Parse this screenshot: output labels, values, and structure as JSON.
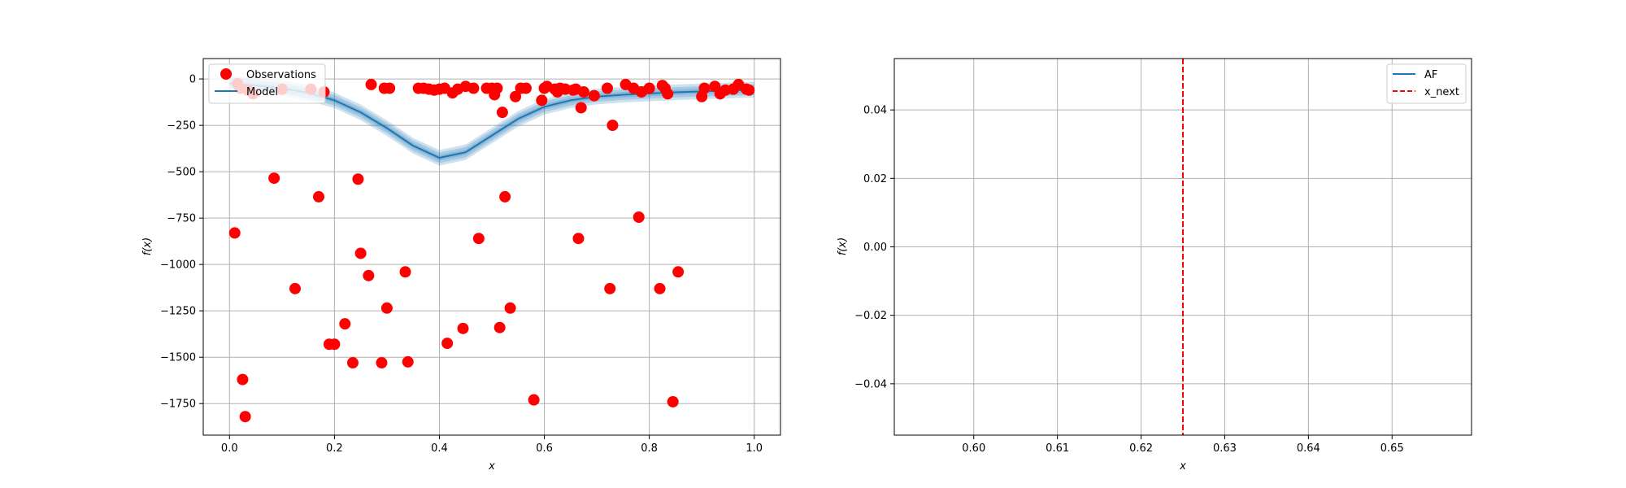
{
  "chart_data": [
    {
      "type": "scatter",
      "xlabel": "x",
      "ylabel": "f(x)",
      "xlim": [
        -0.05,
        1.05
      ],
      "ylim": [
        -1920,
        110
      ],
      "xticks": [
        0.0,
        0.2,
        0.4,
        0.6,
        0.8,
        1.0
      ],
      "xtick_labels": [
        "0.0",
        "0.2",
        "0.4",
        "0.6",
        "0.8",
        "1.0"
      ],
      "yticks": [
        0,
        -250,
        -500,
        -750,
        -1000,
        -1250,
        -1500,
        -1750
      ],
      "ytick_labels": [
        "0",
        "−250",
        "−500",
        "−750",
        "−1000",
        "−1250",
        "−1500",
        "−1750"
      ],
      "grid": true,
      "legend": {
        "position": "top-left",
        "entries": [
          "Observations",
          "Model"
        ]
      },
      "colors": {
        "observations": "#ff0000",
        "model": "#1f77b4"
      },
      "series": [
        {
          "name": "Observations",
          "type": "scatter",
          "points": [
            [
              0.01,
              -830
            ],
            [
              0.015,
              -25
            ],
            [
              0.02,
              -50
            ],
            [
              0.025,
              -1620
            ],
            [
              0.03,
              -1820
            ],
            [
              0.035,
              -60
            ],
            [
              0.045,
              -80
            ],
            [
              0.085,
              -535
            ],
            [
              0.1,
              -55
            ],
            [
              0.125,
              -1130
            ],
            [
              0.155,
              -55
            ],
            [
              0.17,
              -635
            ],
            [
              0.18,
              -70
            ],
            [
              0.19,
              -1430
            ],
            [
              0.2,
              -1430
            ],
            [
              0.22,
              -1320
            ],
            [
              0.235,
              -1530
            ],
            [
              0.245,
              -540
            ],
            [
              0.25,
              -940
            ],
            [
              0.265,
              -1060
            ],
            [
              0.27,
              -30
            ],
            [
              0.29,
              -1530
            ],
            [
              0.295,
              -50
            ],
            [
              0.3,
              -1235
            ],
            [
              0.305,
              -50
            ],
            [
              0.335,
              -1040
            ],
            [
              0.34,
              -1525
            ],
            [
              0.36,
              -50
            ],
            [
              0.37,
              -50
            ],
            [
              0.38,
              -55
            ],
            [
              0.39,
              -60
            ],
            [
              0.4,
              -55
            ],
            [
              0.41,
              -50
            ],
            [
              0.415,
              -1425
            ],
            [
              0.425,
              -75
            ],
            [
              0.435,
              -55
            ],
            [
              0.445,
              -1345
            ],
            [
              0.45,
              -40
            ],
            [
              0.465,
              -50
            ],
            [
              0.475,
              -860
            ],
            [
              0.49,
              -50
            ],
            [
              0.5,
              -50
            ],
            [
              0.505,
              -85
            ],
            [
              0.51,
              -50
            ],
            [
              0.515,
              -1340
            ],
            [
              0.52,
              -180
            ],
            [
              0.525,
              -635
            ],
            [
              0.535,
              -1235
            ],
            [
              0.545,
              -95
            ],
            [
              0.555,
              -50
            ],
            [
              0.565,
              -50
            ],
            [
              0.58,
              -1730
            ],
            [
              0.595,
              -115
            ],
            [
              0.6,
              -50
            ],
            [
              0.605,
              -40
            ],
            [
              0.62,
              -55
            ],
            [
              0.625,
              -70
            ],
            [
              0.63,
              -50
            ],
            [
              0.64,
              -55
            ],
            [
              0.655,
              -60
            ],
            [
              0.66,
              -55
            ],
            [
              0.665,
              -860
            ],
            [
              0.67,
              -155
            ],
            [
              0.675,
              -70
            ],
            [
              0.695,
              -90
            ],
            [
              0.72,
              -50
            ],
            [
              0.725,
              -1130
            ],
            [
              0.73,
              -250
            ],
            [
              0.755,
              -30
            ],
            [
              0.77,
              -50
            ],
            [
              0.78,
              -745
            ],
            [
              0.785,
              -70
            ],
            [
              0.8,
              -50
            ],
            [
              0.82,
              -1130
            ],
            [
              0.825,
              -35
            ],
            [
              0.83,
              -50
            ],
            [
              0.835,
              -80
            ],
            [
              0.845,
              -1740
            ],
            [
              0.855,
              -1040
            ],
            [
              0.9,
              -95
            ],
            [
              0.905,
              -50
            ],
            [
              0.925,
              -40
            ],
            [
              0.935,
              -80
            ],
            [
              0.945,
              -60
            ],
            [
              0.96,
              -55
            ],
            [
              0.97,
              -30
            ],
            [
              0.985,
              -55
            ],
            [
              0.99,
              -60
            ]
          ]
        },
        {
          "name": "Model",
          "type": "line",
          "points": [
            [
              0.0,
              -25
            ],
            [
              0.05,
              -35
            ],
            [
              0.1,
              -50
            ],
            [
              0.15,
              -75
            ],
            [
              0.2,
              -115
            ],
            [
              0.25,
              -180
            ],
            [
              0.3,
              -265
            ],
            [
              0.35,
              -360
            ],
            [
              0.4,
              -425
            ],
            [
              0.45,
              -395
            ],
            [
              0.5,
              -305
            ],
            [
              0.55,
              -215
            ],
            [
              0.6,
              -150
            ],
            [
              0.65,
              -115
            ],
            [
              0.7,
              -95
            ],
            [
              0.75,
              -85
            ],
            [
              0.8,
              -78
            ],
            [
              0.85,
              -72
            ],
            [
              0.9,
              -67
            ],
            [
              0.95,
              -62
            ],
            [
              1.0,
              -58
            ]
          ],
          "band_halfwidths": [
            42,
            28,
            14
          ]
        }
      ]
    },
    {
      "type": "line",
      "xlabel": "x",
      "ylabel": "f(x)",
      "xlim": [
        0.5905,
        0.6595
      ],
      "ylim": [
        -0.055,
        0.055
      ],
      "xticks": [
        0.6,
        0.61,
        0.62,
        0.63,
        0.64,
        0.65
      ],
      "xtick_labels": [
        "0.60",
        "0.61",
        "0.62",
        "0.63",
        "0.64",
        "0.65"
      ],
      "yticks": [
        0.04,
        0.02,
        0.0,
        -0.02,
        -0.04
      ],
      "ytick_labels": [
        "0.04",
        "0.02",
        "0.00",
        "−0.02",
        "−0.04"
      ],
      "grid": true,
      "legend": {
        "position": "top-right",
        "entries": [
          "AF",
          "x_next"
        ]
      },
      "colors": {
        "af": "#1f77b4",
        "x_next": "#ff0000"
      },
      "series": [
        {
          "name": "AF",
          "type": "line",
          "points": []
        },
        {
          "name": "x_next",
          "type": "vline",
          "x": 0.625
        }
      ]
    }
  ]
}
